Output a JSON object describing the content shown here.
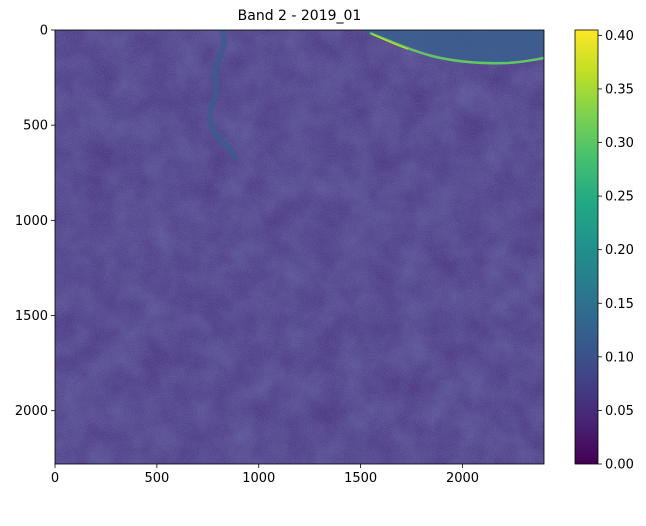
{
  "chart_data": {
    "type": "heatmap",
    "title": "Band 2 - 2019_01",
    "xlabel": "",
    "ylabel": "",
    "x_range": [
      0,
      2400
    ],
    "y_range": [
      0,
      2280
    ],
    "y_inverted": true,
    "x_ticks": [
      "0",
      "500",
      "1000",
      "1500",
      "2000"
    ],
    "y_ticks": [
      "0",
      "500",
      "1000",
      "1500",
      "2000"
    ],
    "x_tick_values": [
      0,
      500,
      1000,
      1500,
      2000
    ],
    "y_tick_values": [
      0,
      500,
      1000,
      1500,
      2000
    ],
    "colormap": "viridis",
    "colorbar": {
      "range": [
        0.0,
        0.405
      ],
      "ticks": [
        "0.00",
        "0.05",
        "0.10",
        "0.15",
        "0.20",
        "0.25",
        "0.30",
        "0.35",
        "0.40"
      ],
      "tick_values": [
        0.0,
        0.05,
        0.1,
        0.15,
        0.2,
        0.25,
        0.3,
        0.35,
        0.4
      ]
    },
    "typical_value": 0.05,
    "grid": false
  }
}
